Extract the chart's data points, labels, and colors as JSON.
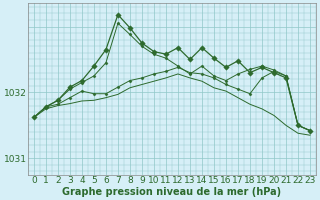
{
  "hours": [
    0,
    1,
    2,
    3,
    4,
    5,
    6,
    7,
    8,
    9,
    10,
    11,
    12,
    13,
    14,
    15,
    16,
    17,
    18,
    19,
    20,
    21,
    22,
    23
  ],
  "spike_line": [
    1031.62,
    1031.78,
    1031.88,
    1032.08,
    1032.18,
    1032.4,
    1032.65,
    1033.18,
    1032.98,
    1032.75,
    1032.62,
    1032.58,
    1032.68,
    1032.5,
    1032.68,
    1032.52,
    1032.38,
    1032.48,
    1032.3,
    1032.38,
    1032.3,
    1032.22,
    1031.5,
    1031.42
  ],
  "upper_line": [
    1031.62,
    1031.78,
    1031.88,
    1032.05,
    1032.15,
    1032.25,
    1032.45,
    1033.05,
    1032.88,
    1032.7,
    1032.58,
    1032.52,
    1032.4,
    1032.28,
    1032.4,
    1032.25,
    1032.18,
    1032.28,
    1032.35,
    1032.4,
    1032.34,
    1032.25,
    1031.5,
    1031.42
  ],
  "mid_line": [
    1031.62,
    1031.78,
    1031.82,
    1031.92,
    1032.02,
    1031.98,
    1031.98,
    1032.08,
    1032.18,
    1032.22,
    1032.28,
    1032.32,
    1032.38,
    1032.3,
    1032.28,
    1032.22,
    1032.12,
    1032.05,
    1031.98,
    1032.22,
    1032.32,
    1032.25,
    1031.5,
    1031.42
  ],
  "lower_line": [
    1031.62,
    1031.75,
    1031.8,
    1031.83,
    1031.87,
    1031.88,
    1031.92,
    1031.97,
    1032.07,
    1032.12,
    1032.17,
    1032.22,
    1032.28,
    1032.22,
    1032.17,
    1032.07,
    1032.02,
    1031.92,
    1031.82,
    1031.75,
    1031.65,
    1031.5,
    1031.38,
    1031.35
  ],
  "bg_color": "#d6eff7",
  "line_color": "#2d6a2d",
  "grid_color": "#90c8c8",
  "font_color": "#2d6a2d",
  "xlabel": "Graphe pression niveau de la mer (hPa)",
  "yticks": [
    1031,
    1032
  ],
  "ylim": [
    1030.75,
    1033.35
  ],
  "xlim": [
    -0.5,
    23.5
  ],
  "xlabel_fontsize": 7.0,
  "tick_fontsize": 6.5
}
